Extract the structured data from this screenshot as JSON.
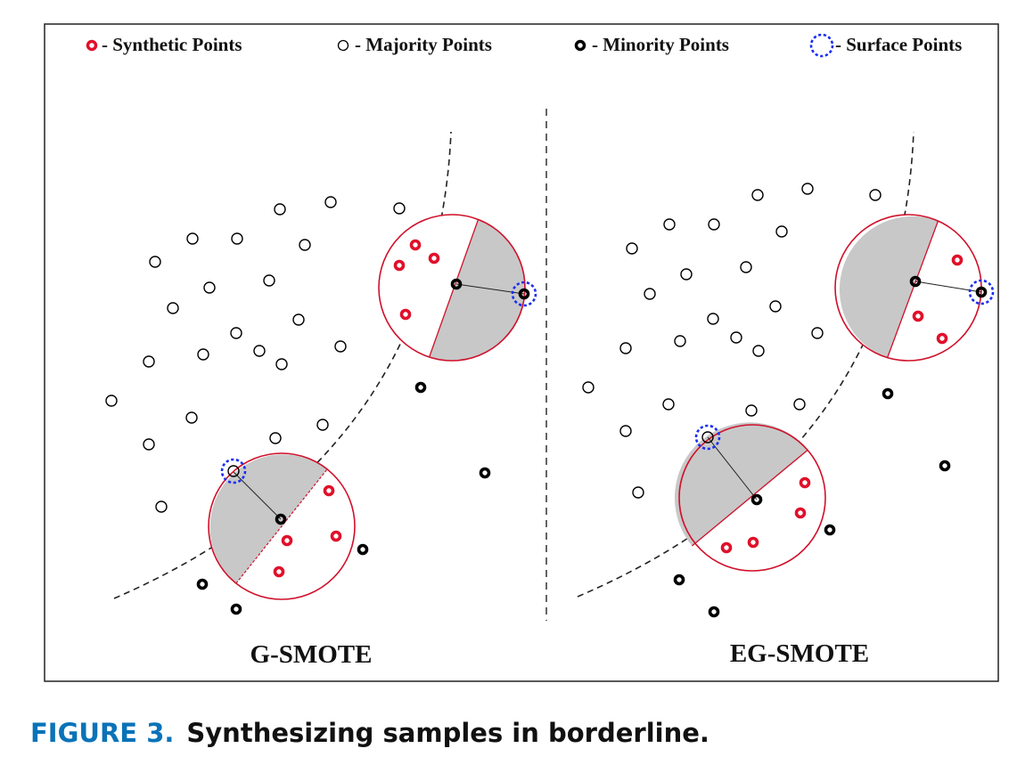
{
  "legend": {
    "synthetic": "- Synthetic Points",
    "majority": "- Majority Points",
    "minority": "- Minority Points",
    "surface": "- Surface Points"
  },
  "panels": {
    "left_title": "G-SMOTE",
    "right_title": "EG-SMOTE"
  },
  "caption": {
    "label": "FIGURE 3.",
    "text": "Synthesizing samples in borderline."
  },
  "colors": {
    "synthetic": "#e0102a",
    "majority": "#000000",
    "minority": "#000000",
    "surface": "#1a2ff0",
    "shaded_region": "#c8c8c8",
    "circle_outline": "#d0102a",
    "caption_label": "#0a73b8"
  }
}
